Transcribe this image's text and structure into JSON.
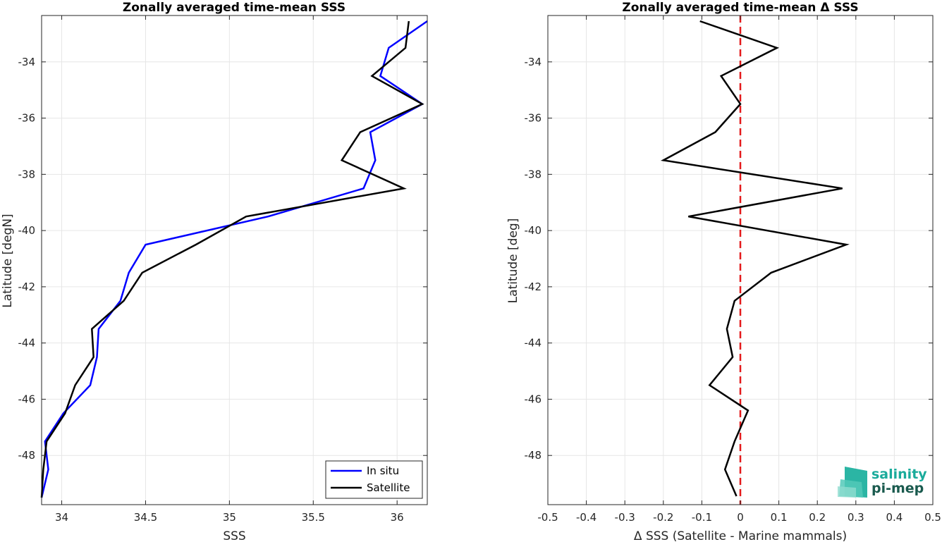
{
  "chart_data": [
    {
      "type": "line",
      "title": "Zonally averaged time-mean SSS",
      "xlabel": "SSS",
      "ylabel": "Latitude [degN]",
      "xlim": [
        33.88,
        36.18
      ],
      "ylim": [
        -49.75,
        -32.35
      ],
      "xticks": [
        "34",
        "34.5",
        "35",
        "35.5",
        "36"
      ],
      "yticks": [
        "-34",
        "-36",
        "-38",
        "-40",
        "-42",
        "-44",
        "-46",
        "-48"
      ],
      "grid": true,
      "legend_position": "bottom-right",
      "series": [
        {
          "name": "In situ",
          "color": "#0000ff",
          "points": [
            [
              36.18,
              -32.55
            ],
            [
              35.95,
              -33.5
            ],
            [
              35.9,
              -34.5
            ],
            [
              36.15,
              -35.5
            ],
            [
              35.84,
              -36.5
            ],
            [
              35.87,
              -37.5
            ],
            [
              35.8,
              -38.5
            ],
            [
              35.23,
              -39.5
            ],
            [
              34.5,
              -40.5
            ],
            [
              34.4,
              -41.5
            ],
            [
              34.35,
              -42.5
            ],
            [
              34.22,
              -43.5
            ],
            [
              34.21,
              -44.5
            ],
            [
              34.17,
              -45.5
            ],
            [
              34.01,
              -46.5
            ],
            [
              33.9,
              -47.5
            ],
            [
              33.92,
              -48.5
            ],
            [
              33.88,
              -49.5
            ]
          ]
        },
        {
          "name": "Satellite",
          "color": "#000000",
          "points": [
            [
              36.07,
              -32.55
            ],
            [
              36.05,
              -33.5
            ],
            [
              35.85,
              -34.5
            ],
            [
              36.15,
              -35.5
            ],
            [
              35.78,
              -36.5
            ],
            [
              35.67,
              -37.5
            ],
            [
              36.04,
              -38.5
            ],
            [
              35.1,
              -39.5
            ],
            [
              34.8,
              -40.5
            ],
            [
              34.48,
              -41.5
            ],
            [
              34.37,
              -42.5
            ],
            [
              34.18,
              -43.5
            ],
            [
              34.19,
              -44.5
            ],
            [
              34.08,
              -45.5
            ],
            [
              34.02,
              -46.5
            ],
            [
              33.91,
              -47.5
            ],
            [
              33.89,
              -48.5
            ],
            [
              33.88,
              -49.5
            ]
          ]
        }
      ]
    },
    {
      "type": "line",
      "title": "Zonally averaged time-mean Δ SSS",
      "xlabel": "Δ SSS (Satellite - Marine mammals)",
      "ylabel": "Latitude [deg]",
      "xlim": [
        -0.5,
        0.5
      ],
      "ylim": [
        -49.75,
        -32.35
      ],
      "xticks": [
        "-0.5",
        "-0.4",
        "-0.3",
        "-0.2",
        "-0.1",
        "0",
        "0.1",
        "0.2",
        "0.3",
        "0.4",
        "0.5"
      ],
      "yticks": [
        "-34",
        "-36",
        "-38",
        "-40",
        "-42",
        "-44",
        "-46",
        "-48"
      ],
      "grid": true,
      "reference_line": {
        "x": 0,
        "color": "#e41a1c",
        "style": "dashed"
      },
      "series": [
        {
          "color": "#000000",
          "points": [
            [
              -0.105,
              -32.55
            ],
            [
              0.095,
              -33.5
            ],
            [
              -0.05,
              -34.5
            ],
            [
              0.0,
              -35.5
            ],
            [
              -0.065,
              -36.5
            ],
            [
              -0.2,
              -37.5
            ],
            [
              0.265,
              -38.5
            ],
            [
              -0.135,
              -39.5
            ],
            [
              0.275,
              -40.5
            ],
            [
              0.08,
              -41.5
            ],
            [
              -0.015,
              -42.5
            ],
            [
              -0.035,
              -43.5
            ],
            [
              -0.02,
              -44.5
            ],
            [
              -0.08,
              -45.5
            ],
            [
              0.02,
              -46.4
            ],
            [
              -0.015,
              -47.5
            ],
            [
              -0.04,
              -48.5
            ],
            [
              -0.01,
              -49.45
            ]
          ]
        }
      ]
    }
  ],
  "logo": {
    "line1": "salinity",
    "line2": "pi-mep",
    "color1": "#1aab9b",
    "color2": "#1a5a4e"
  }
}
